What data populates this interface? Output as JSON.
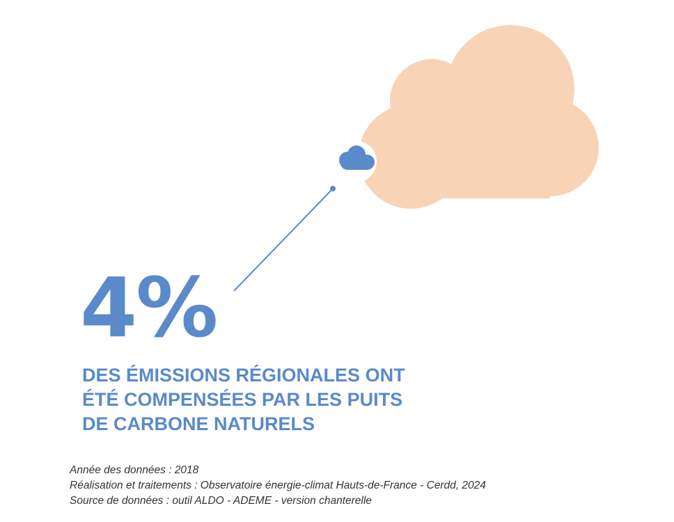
{
  "chart_data": {
    "type": "pictogram",
    "value": 4,
    "value_label": "4%",
    "unit": "%",
    "description_lines": [
      "DES ÉMISSIONS RÉGIONALES ONT",
      "ÉTÉ COMPENSÉES PAR LES PUITS",
      "DE CARBONE NATURELS"
    ],
    "whole_label": "",
    "share": 0.04
  },
  "notes": [
    "Année des données : 2018",
    "Réalisation et traitements : Observatoire énergie-climat Hauts-de-France - Cerdd, 2024",
    "Source de données : outil ALDO - ADEME - version chanterelle"
  ],
  "colors": {
    "primary": "#5a8ac9",
    "cloud_large": "#f8d3b5",
    "cloud_small": "#5a8ac9",
    "text_notes": "#333333",
    "background": "#ffffff"
  },
  "icons": {
    "large": "cloud-icon",
    "small": "cloud-icon"
  }
}
